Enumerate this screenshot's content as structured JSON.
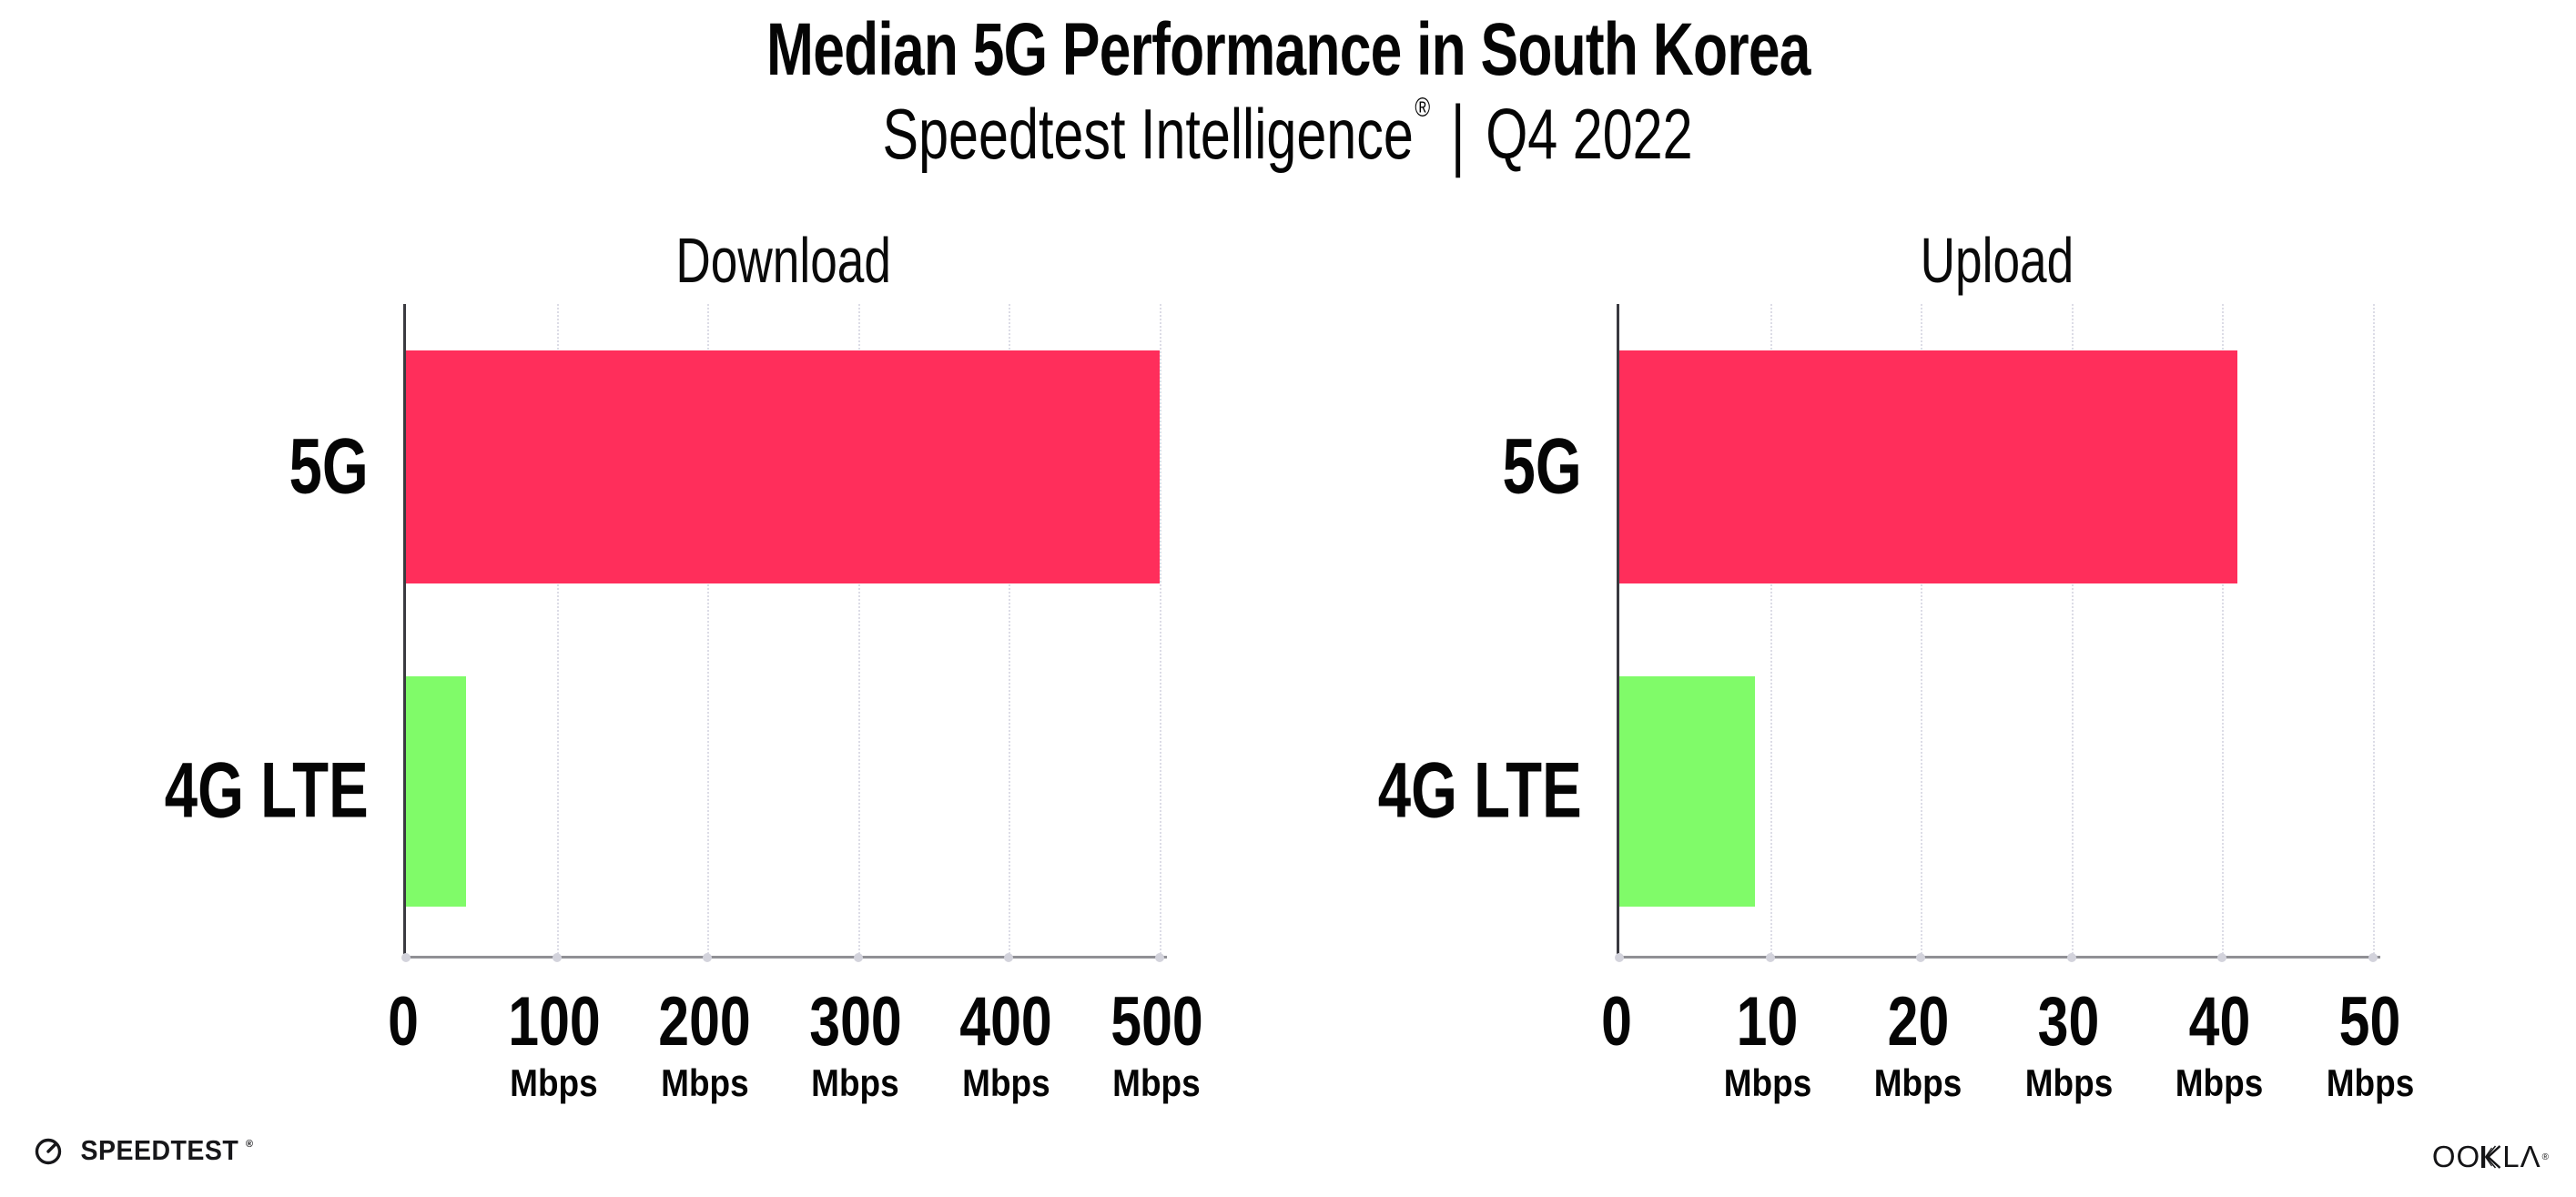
{
  "header": {
    "title": "Median 5G Performance in South Korea",
    "subtitle": {
      "brand": "Speedtest Intelligence",
      "registered_mark": "®",
      "separator": "|",
      "period": "Q4 2022"
    }
  },
  "chart_data": [
    {
      "type": "bar",
      "orientation": "horizontal",
      "title": "Download",
      "categories": [
        "5G",
        "4G LTE"
      ],
      "values": [
        500,
        40
      ],
      "unit": "Mbps",
      "xticks": [
        0,
        100,
        200,
        300,
        400,
        500
      ],
      "xlim": [
        0,
        505
      ],
      "bar_colors": [
        "#ff2e5b",
        "#80fb69"
      ],
      "grid": "dotted-vertical-major",
      "legend": "none"
    },
    {
      "type": "bar",
      "orientation": "horizontal",
      "title": "Upload",
      "categories": [
        "5G",
        "4G LTE"
      ],
      "values": [
        41,
        9
      ],
      "unit": "Mbps",
      "xticks": [
        0,
        10,
        20,
        30,
        40,
        50
      ],
      "xlim": [
        0,
        50.5
      ],
      "bar_colors": [
        "#ff2e5b",
        "#80fb69"
      ],
      "grid": "dotted-vertical-major",
      "legend": "none"
    }
  ],
  "footer": {
    "speedtest_wordmark": "SPEEDTEST",
    "speedtest_mark": "®",
    "ookla_prefix": "OO",
    "ookla_suffix": "LΛ",
    "ookla_mark": "®"
  },
  "colors": {
    "bar_5g": "#ff2e5b",
    "bar_4g_lte": "#80fb69",
    "gridline": "#dcdce6",
    "y_axis": "#3a3a40",
    "x_axis": "#909095",
    "text": "#050505",
    "background": "#ffffff"
  }
}
